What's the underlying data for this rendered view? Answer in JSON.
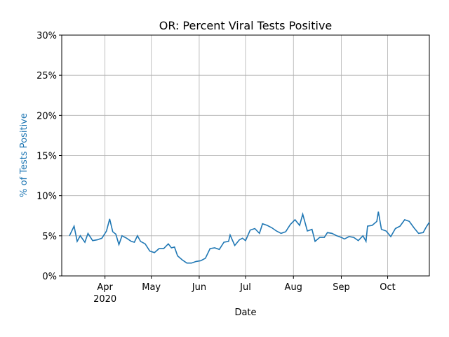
{
  "chart_data": {
    "type": "line",
    "title": "OR: Percent Viral Tests Positive",
    "xlabel": "Date",
    "ylabel": "% of Tests Positive",
    "ylabel_color": "#1f77b4",
    "color": "#1f77b4",
    "grid": true,
    "x": [
      "2020-03-09",
      "2020-03-12",
      "2020-03-14",
      "2020-03-16",
      "2020-03-19",
      "2020-03-21",
      "2020-03-24",
      "2020-03-27",
      "2020-03-30",
      "2020-04-02",
      "2020-04-04",
      "2020-04-06",
      "2020-04-08",
      "2020-04-10",
      "2020-04-12",
      "2020-04-15",
      "2020-04-18",
      "2020-04-20",
      "2020-04-22",
      "2020-04-24",
      "2020-04-27",
      "2020-04-30",
      "2020-05-03",
      "2020-05-06",
      "2020-05-09",
      "2020-05-12",
      "2020-05-14",
      "2020-05-16",
      "2020-05-18",
      "2020-05-21",
      "2020-05-24",
      "2020-05-27",
      "2020-05-30",
      "2020-06-02",
      "2020-06-05",
      "2020-06-08",
      "2020-06-11",
      "2020-06-14",
      "2020-06-17",
      "2020-06-20",
      "2020-06-21",
      "2020-06-24",
      "2020-06-27",
      "2020-06-29",
      "2020-07-01",
      "2020-07-04",
      "2020-07-07",
      "2020-07-10",
      "2020-07-12",
      "2020-07-15",
      "2020-07-18",
      "2020-07-21",
      "2020-07-24",
      "2020-07-27",
      "2020-07-30",
      "2020-08-02",
      "2020-08-05",
      "2020-08-07",
      "2020-08-10",
      "2020-08-13",
      "2020-08-15",
      "2020-08-18",
      "2020-08-21",
      "2020-08-23",
      "2020-08-26",
      "2020-08-29",
      "2020-09-01",
      "2020-09-03",
      "2020-09-06",
      "2020-09-09",
      "2020-09-12",
      "2020-09-15",
      "2020-09-17",
      "2020-09-18",
      "2020-09-21",
      "2020-09-24",
      "2020-09-25",
      "2020-09-27",
      "2020-09-30",
      "2020-10-03",
      "2020-10-06",
      "2020-10-09",
      "2020-10-12",
      "2020-10-15",
      "2020-10-18",
      "2020-10-21",
      "2020-10-24",
      "2020-10-26",
      "2020-10-28"
    ],
    "values": [
      5.0,
      6.2,
      4.3,
      5.0,
      4.2,
      5.3,
      4.4,
      4.5,
      4.7,
      5.6,
      7.1,
      5.5,
      5.2,
      3.9,
      5.0,
      4.7,
      4.3,
      4.2,
      5.0,
      4.3,
      4.0,
      3.1,
      2.9,
      3.4,
      3.4,
      4.0,
      3.5,
      3.6,
      2.5,
      2.0,
      1.6,
      1.6,
      1.8,
      1.9,
      2.2,
      3.4,
      3.5,
      3.3,
      4.2,
      4.3,
      5.1,
      3.8,
      4.5,
      4.7,
      4.4,
      5.7,
      5.9,
      5.3,
      6.5,
      6.3,
      6.0,
      5.6,
      5.3,
      5.5,
      6.4,
      7.0,
      6.3,
      7.7,
      5.6,
      5.8,
      4.3,
      4.8,
      4.8,
      5.4,
      5.3,
      5.0,
      4.8,
      4.6,
      4.9,
      4.8,
      4.4,
      5.0,
      4.3,
      6.2,
      6.3,
      6.8,
      8.0,
      5.8,
      5.6,
      4.9,
      5.9,
      6.2,
      7.0,
      6.8,
      6.0,
      5.3,
      5.4,
      6.1,
      6.7
    ],
    "xlim": [
      "2020-03-04",
      "2020-10-28"
    ],
    "xticks": [
      {
        "value": "2020-04-01",
        "label": "Apr"
      },
      {
        "value": "2020-05-01",
        "label": "May"
      },
      {
        "value": "2020-06-01",
        "label": "Jun"
      },
      {
        "value": "2020-07-01",
        "label": "Jul"
      },
      {
        "value": "2020-08-01",
        "label": "Aug"
      },
      {
        "value": "2020-09-01",
        "label": "Sep"
      },
      {
        "value": "2020-10-01",
        "label": "Oct"
      }
    ],
    "xtick_year": "2020",
    "ylim": [
      0,
      30
    ],
    "yticks": [
      {
        "value": 0,
        "label": "0%"
      },
      {
        "value": 5,
        "label": "5%"
      },
      {
        "value": 10,
        "label": "10%"
      },
      {
        "value": 15,
        "label": "15%"
      },
      {
        "value": 20,
        "label": "20%"
      },
      {
        "value": 25,
        "label": "25%"
      },
      {
        "value": 30,
        "label": "30%"
      }
    ]
  }
}
